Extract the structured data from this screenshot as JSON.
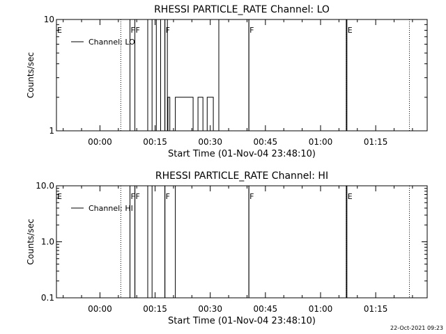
{
  "chart_data": [
    {
      "type": "line",
      "title": "RHESSI PARTICLE_RATE Channel: LO",
      "xlabel": "Start Time (01-Nov-04 23:48:10)",
      "ylabel": "Counts/sec",
      "yscale": "log",
      "xlim": [
        "23:48:10",
        "01:29:00"
      ],
      "ylim": [
        1,
        10
      ],
      "x_tick_labels": [
        "00:00",
        "00:15",
        "00:30",
        "00:45",
        "01:00",
        "01:15"
      ],
      "y_tick_labels": [
        "1",
        "10"
      ],
      "grid": false,
      "legend": {
        "position": "top-left",
        "entries": [
          "Channel: LO"
        ]
      },
      "series": [
        {
          "name": "Channel: LO",
          "x": [
            "00:13:00",
            "00:13:00",
            "00:14:10",
            "00:14:10",
            "00:15:20",
            "00:15:20",
            "00:16:30",
            "00:16:30",
            "00:17:40",
            "00:17:40",
            "00:18:20",
            "00:18:20",
            "00:18:30",
            "00:18:30",
            "00:19:00",
            "00:19:00",
            "00:20:30",
            "00:20:30",
            "00:25:20",
            "00:25:20",
            "00:26:40",
            "00:26:40",
            "00:28:00",
            "00:28:00",
            "00:29:10",
            "00:29:10",
            "00:30:50",
            "00:30:50",
            "00:32:20",
            "00:32:20",
            "00:40:30",
            "00:40:30",
            "01:07:00",
            "01:07:00"
          ],
          "y": [
            1,
            10,
            10,
            1,
            1,
            10,
            10,
            1,
            1,
            10,
            10,
            1,
            1,
            2,
            2,
            1,
            1,
            2,
            2,
            1,
            1,
            2,
            2,
            1,
            1,
            2,
            2,
            1,
            1,
            10,
            10,
            1,
            1,
            10
          ]
        }
      ],
      "annotations": [
        {
          "text": "E",
          "x": "23:48:10",
          "style": "solid"
        },
        {
          "text": "",
          "x": "00:05:40",
          "style": "dotted"
        },
        {
          "text": "F",
          "x": "00:08:10",
          "style": "solid"
        },
        {
          "text": "F",
          "x": "00:09:30",
          "style": "solid"
        },
        {
          "text": "F",
          "x": "00:17:40",
          "style": "solid"
        },
        {
          "text": "F",
          "x": "00:40:30",
          "style": "solid"
        },
        {
          "text": "E",
          "x": "01:07:10",
          "style": "solid"
        },
        {
          "text": "",
          "x": "01:07:00",
          "style": "dotted"
        },
        {
          "text": "",
          "x": "01:24:10",
          "style": "dotted"
        }
      ]
    },
    {
      "type": "line",
      "title": "RHESSI PARTICLE_RATE Channel: HI",
      "xlabel": "Start Time (01-Nov-04 23:48:10)",
      "ylabel": "Counts/sec",
      "yscale": "log",
      "xlim": [
        "23:48:10",
        "01:29:00"
      ],
      "ylim": [
        0.1,
        10
      ],
      "x_tick_labels": [
        "00:00",
        "00:15",
        "00:30",
        "00:45",
        "01:00",
        "01:15"
      ],
      "y_tick_labels": [
        "0.1",
        "1.0",
        "10.0"
      ],
      "grid": false,
      "legend": {
        "position": "top-left",
        "entries": [
          "Channel: HI"
        ]
      },
      "series": [
        {
          "name": "Channel: HI",
          "x": [
            "00:08:10",
            "00:08:10",
            "00:09:30",
            "00:09:30",
            "00:13:00",
            "00:13:00",
            "00:14:10",
            "00:14:10",
            "00:17:40",
            "00:17:40",
            "00:20:30",
            "00:20:30",
            "00:40:30",
            "00:40:30",
            "01:07:00",
            "01:07:00"
          ],
          "y": [
            0.1,
            10,
            10,
            0.1,
            0.1,
            10,
            10,
            0.1,
            0.1,
            10,
            10,
            0.1,
            0.1,
            10,
            10,
            0.1
          ]
        }
      ],
      "annotations": [
        {
          "text": "E",
          "x": "23:48:10",
          "style": "solid"
        },
        {
          "text": "",
          "x": "00:05:40",
          "style": "dotted"
        },
        {
          "text": "F",
          "x": "00:08:10",
          "style": "solid"
        },
        {
          "text": "F",
          "x": "00:09:30",
          "style": "solid"
        },
        {
          "text": "F",
          "x": "00:17:40",
          "style": "solid"
        },
        {
          "text": "F",
          "x": "00:40:30",
          "style": "solid"
        },
        {
          "text": "E",
          "x": "01:07:10",
          "style": "solid"
        },
        {
          "text": "",
          "x": "01:07:00",
          "style": "dotted"
        },
        {
          "text": "",
          "x": "01:24:10",
          "style": "dotted"
        }
      ]
    }
  ],
  "footer": {
    "timestamp": "22-Oct-2021 09:23"
  }
}
